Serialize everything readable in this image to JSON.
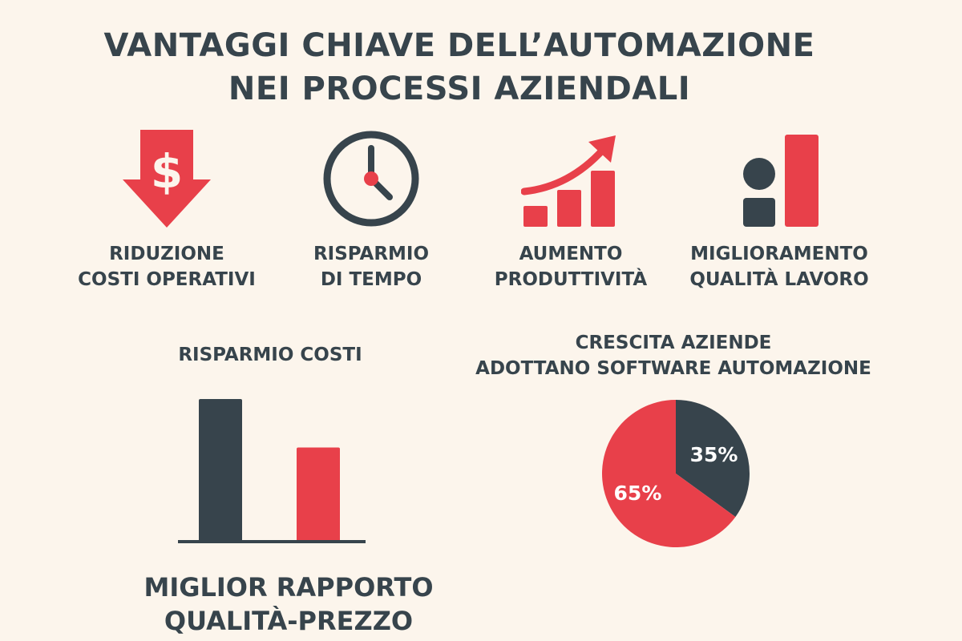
{
  "colors": {
    "background": "#fcf5ec",
    "dark": "#37444c",
    "accent": "#e8404a"
  },
  "title": {
    "line1": "VANTAGGI CHIAVE DELL’AUTOMAZIONE",
    "line2": "NEI PROCESSI AZIENDALI"
  },
  "benefits": [
    {
      "icon": "dollar-down-arrow-icon",
      "line1": "RIDUZIONE",
      "line2": "COSTI OPERATIVI"
    },
    {
      "icon": "clock-icon",
      "line1": "RISPARMIO",
      "line2": "DI TEMPO"
    },
    {
      "icon": "growth-chart-icon",
      "line1": "AUMENTO",
      "line2": "PRODUTTIVITÀ"
    },
    {
      "icon": "person-bar-icon",
      "line1": "MIGLIORAMENTO",
      "line2": "QUALITÀ LAVORO"
    }
  ],
  "bar_section": {
    "title": "RISPARMIO COSTI"
  },
  "pie_section": {
    "line1": "CRESCITA AZIENDE",
    "line2": "ADOTTANO SOFTWARE AUTOMAZIONE"
  },
  "bottom_caption": {
    "line1": "MIGLIOR RAPPORTO",
    "line2": "QUALITÀ-PREZZO"
  },
  "chart_data": [
    {
      "type": "bar",
      "title": "RISPARMIO COSTI",
      "categories": [
        "",
        ""
      ],
      "values": [
        100,
        66
      ],
      "colors": [
        "#37444c",
        "#e8404a"
      ],
      "ylim": [
        0,
        100
      ],
      "grid": false
    },
    {
      "type": "pie",
      "title": "CRESCITA AZIENDE ADOTTANO SOFTWARE AUTOMAZIONE",
      "slices": [
        {
          "value": 35,
          "label": "35%",
          "color": "#37444c"
        },
        {
          "value": 65,
          "label": "65%",
          "color": "#e8404a"
        }
      ]
    }
  ]
}
